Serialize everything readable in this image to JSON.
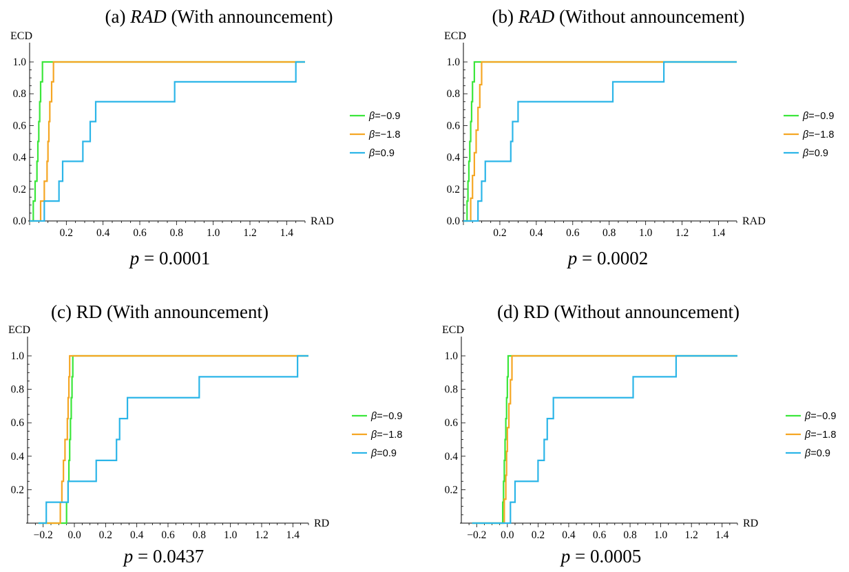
{
  "chart_data": [
    {
      "type": "line",
      "title": "(a) RAD (With announcement)",
      "title_italic": "RAD",
      "xlabel": "RAD",
      "ylabel": "ECD",
      "xlim": [
        0,
        1.5
      ],
      "ylim": [
        0,
        1.0
      ],
      "xticks": [
        "0.2",
        "0.4",
        "0.6",
        "0.8",
        "1.0",
        "1.2",
        "1.4"
      ],
      "yticks": [
        "0.0",
        "0.2",
        "0.4",
        "0.6",
        "0.8",
        "1.0"
      ],
      "p_value": "p = 0.0001",
      "legend_position": "right",
      "series": [
        {
          "name": "β=−0.9",
          "color": "#3ae63a",
          "x": [
            0.02,
            0.03,
            0.04,
            0.045,
            0.05,
            0.055,
            0.06,
            0.07
          ],
          "y": [
            0.125,
            0.25,
            0.375,
            0.5,
            0.625,
            0.75,
            0.875,
            1.0
          ]
        },
        {
          "name": "β=−1.8",
          "color": "#f5a623",
          "x": [
            0.06,
            0.08,
            0.095,
            0.1,
            0.105,
            0.11,
            0.12,
            0.13
          ],
          "y": [
            0.125,
            0.25,
            0.375,
            0.5,
            0.625,
            0.75,
            0.875,
            1.0
          ]
        },
        {
          "name": "β=0.9",
          "color": "#2bb5e8",
          "x": [
            0.08,
            0.16,
            0.18,
            0.29,
            0.33,
            0.36,
            0.79,
            1.45
          ],
          "y": [
            0.125,
            0.25,
            0.375,
            0.5,
            0.625,
            0.75,
            0.875,
            1.0
          ]
        }
      ]
    },
    {
      "type": "line",
      "title": "(b) RAD (Without announcement)",
      "title_italic": "RAD",
      "xlabel": "RAD",
      "ylabel": "ECD",
      "xlim": [
        0,
        1.5
      ],
      "ylim": [
        0,
        1.0
      ],
      "xticks": [
        "0.2",
        "0.4",
        "0.6",
        "0.8",
        "1.0",
        "1.2",
        "1.4"
      ],
      "yticks": [
        "0.0",
        "0.2",
        "0.4",
        "0.6",
        "0.8",
        "1.0"
      ],
      "p_value": "p = 0.0002",
      "legend_position": "right",
      "series": [
        {
          "name": "β=−0.9",
          "color": "#3ae63a",
          "x": [
            0.02,
            0.025,
            0.03,
            0.035,
            0.04,
            0.045,
            0.05,
            0.06
          ],
          "y": [
            0.125,
            0.25,
            0.375,
            0.5,
            0.625,
            0.75,
            0.875,
            1.0
          ]
        },
        {
          "name": "β=−1.8",
          "color": "#f5a623",
          "x": [
            0.04,
            0.05,
            0.06,
            0.07,
            0.08,
            0.09,
            0.1,
            0.11
          ],
          "y": [
            0.143,
            0.286,
            0.429,
            0.571,
            0.714,
            0.857,
            1.0,
            1.0
          ]
        },
        {
          "name": "β=0.9",
          "color": "#2bb5e8",
          "x": [
            0.08,
            0.1,
            0.12,
            0.26,
            0.27,
            0.3,
            0.82,
            1.1
          ],
          "y": [
            0.125,
            0.25,
            0.375,
            0.5,
            0.625,
            0.75,
            0.875,
            1.0
          ]
        }
      ]
    },
    {
      "type": "line",
      "title": "(c) RD (With announcement)",
      "xlabel": "RD",
      "ylabel": "ECD",
      "xlim": [
        -0.3,
        1.5
      ],
      "ylim": [
        0,
        1.0
      ],
      "xticks": [
        "−0.2",
        "0.0",
        "0.2",
        "0.4",
        "0.6",
        "0.8",
        "1.0",
        "1.2",
        "1.4"
      ],
      "yticks": [
        "0.2",
        "0.4",
        "0.6",
        "0.8",
        "1.0"
      ],
      "p_value": "p = 0.0437",
      "legend_position": "right",
      "series": [
        {
          "name": "β=−0.9",
          "color": "#3ae63a",
          "x": [
            -0.05,
            -0.04,
            -0.035,
            -0.03,
            -0.025,
            -0.02,
            -0.015,
            -0.01
          ],
          "y": [
            0.125,
            0.25,
            0.375,
            0.5,
            0.625,
            0.75,
            0.875,
            1.0
          ]
        },
        {
          "name": "β=−1.8",
          "color": "#f5a623",
          "x": [
            -0.09,
            -0.08,
            -0.07,
            -0.06,
            -0.045,
            -0.04,
            -0.035,
            -0.03
          ],
          "y": [
            0.125,
            0.25,
            0.375,
            0.5,
            0.625,
            0.75,
            0.875,
            1.0
          ]
        },
        {
          "name": "β=0.9",
          "color": "#2bb5e8",
          "x": [
            -0.18,
            -0.04,
            0.14,
            0.27,
            0.29,
            0.34,
            0.8,
            1.43
          ],
          "y": [
            0.125,
            0.25,
            0.375,
            0.5,
            0.625,
            0.75,
            0.875,
            1.0
          ]
        }
      ]
    },
    {
      "type": "line",
      "title": "(d) RD (Without announcement)",
      "xlabel": "RD",
      "ylabel": "ECD",
      "xlim": [
        -0.3,
        1.5
      ],
      "ylim": [
        0,
        1.0
      ],
      "xticks": [
        "−0.2",
        "0.0",
        "0.2",
        "0.4",
        "0.6",
        "0.8",
        "1.0",
        "1.2",
        "1.4"
      ],
      "yticks": [
        "0.2",
        "0.4",
        "0.6",
        "0.8",
        "1.0"
      ],
      "p_value": "p = 0.0005",
      "legend_position": "right",
      "series": [
        {
          "name": "β=−0.9",
          "color": "#3ae63a",
          "x": [
            -0.03,
            -0.025,
            -0.02,
            -0.015,
            -0.01,
            -0.005,
            0.0,
            0.005
          ],
          "y": [
            0.125,
            0.25,
            0.375,
            0.5,
            0.625,
            0.75,
            0.875,
            1.0
          ]
        },
        {
          "name": "β=−1.8",
          "color": "#f5a623",
          "x": [
            -0.02,
            -0.01,
            -0.005,
            0.0,
            0.01,
            0.02,
            0.03,
            0.04
          ],
          "y": [
            0.143,
            0.286,
            0.429,
            0.571,
            0.714,
            0.857,
            1.0,
            1.0
          ]
        },
        {
          "name": "β=0.9",
          "color": "#2bb5e8",
          "x": [
            0.02,
            0.05,
            0.2,
            0.24,
            0.26,
            0.3,
            0.82,
            1.1
          ],
          "y": [
            0.125,
            0.25,
            0.375,
            0.5,
            0.625,
            0.75,
            0.875,
            1.0
          ]
        }
      ]
    }
  ]
}
